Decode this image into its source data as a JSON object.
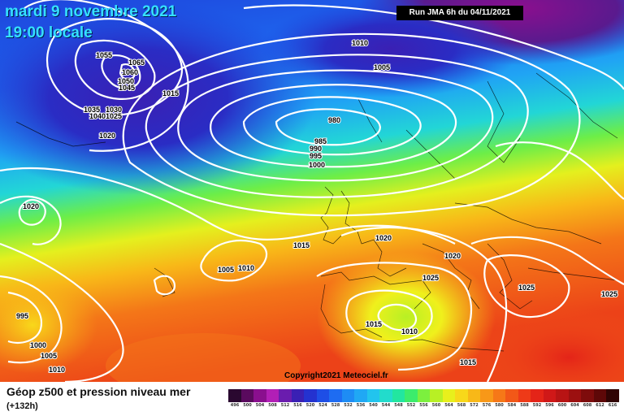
{
  "header": {
    "date": "mardi 9 novembre 2021",
    "time": "19:00 locale",
    "run": "Run JMA 6h du 04/11/2021"
  },
  "copyright": "Copyright2021 Meteociel.fr",
  "legend": {
    "title": "Géop z500 et pression niveau mer",
    "subtitle": "(+132h)",
    "scale": [
      {
        "value": "496",
        "color": "#2a0830"
      },
      {
        "value": "500",
        "color": "#5a0a5e"
      },
      {
        "value": "504",
        "color": "#8a0f8e"
      },
      {
        "value": "508",
        "color": "#b21fb6"
      },
      {
        "value": "512",
        "color": "#6a1cae"
      },
      {
        "value": "516",
        "color": "#3a20b4"
      },
      {
        "value": "520",
        "color": "#2432d0"
      },
      {
        "value": "524",
        "color": "#1e4ee6"
      },
      {
        "value": "528",
        "color": "#1e6cf2"
      },
      {
        "value": "532",
        "color": "#1e8cf4"
      },
      {
        "value": "536",
        "color": "#20a8f4"
      },
      {
        "value": "540",
        "color": "#22c4ee"
      },
      {
        "value": "544",
        "color": "#22dccc"
      },
      {
        "value": "548",
        "color": "#22e6a0"
      },
      {
        "value": "552",
        "color": "#3cec6c"
      },
      {
        "value": "556",
        "color": "#7cf03e"
      },
      {
        "value": "560",
        "color": "#b8f024"
      },
      {
        "value": "564",
        "color": "#e8f01c"
      },
      {
        "value": "568",
        "color": "#f8d81a"
      },
      {
        "value": "572",
        "color": "#f8b818"
      },
      {
        "value": "576",
        "color": "#f89818"
      },
      {
        "value": "580",
        "color": "#f67818"
      },
      {
        "value": "584",
        "color": "#f25818"
      },
      {
        "value": "588",
        "color": "#ee3a18"
      },
      {
        "value": "592",
        "color": "#e42418"
      },
      {
        "value": "596",
        "color": "#d01818"
      },
      {
        "value": "600",
        "color": "#b81414"
      },
      {
        "value": "604",
        "color": "#9c1010"
      },
      {
        "value": "608",
        "color": "#7e0c0c"
      },
      {
        "value": "612",
        "color": "#5e0808"
      },
      {
        "value": "616",
        "color": "#300404"
      }
    ]
  },
  "isobar_labels": [
    "1055",
    "1065",
    "1060",
    "1050",
    "1045",
    "1015",
    "1035",
    "1030",
    "1040",
    "1025",
    "1020",
    "1010",
    "1005",
    "980",
    "985",
    "990",
    "995",
    "1000",
    "1020",
    "1015",
    "1005",
    "1010",
    "1020",
    "1020",
    "1025",
    "1025",
    "995",
    "1000",
    "1005",
    "1010",
    "1015",
    "1010",
    "1015"
  ]
}
